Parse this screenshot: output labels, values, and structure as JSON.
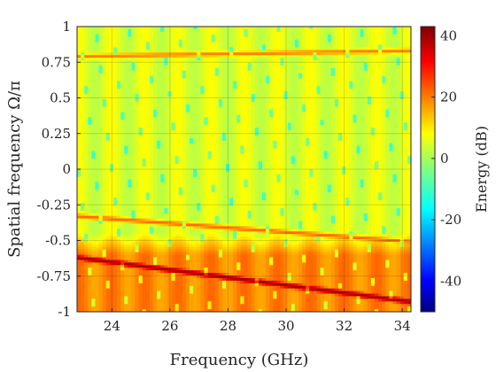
{
  "chart_data": {
    "type": "heatmap",
    "title": "",
    "xlabel": "Frequency (GHz)",
    "ylabel": "Spatial frequency Ω/π",
    "xlim": [
      22.8,
      34.3
    ],
    "ylim": [
      -1,
      1
    ],
    "x_ticks": [
      24,
      26,
      28,
      30,
      32,
      34
    ],
    "y_ticks": [
      1,
      0.75,
      0.5,
      0.25,
      0,
      -0.25,
      -0.5,
      -0.75,
      -1
    ],
    "y_tick_labels": [
      "1",
      "0.75",
      "0.5",
      "0.25",
      "0",
      "-0.25",
      "-0.5",
      "-0.75",
      "-1"
    ],
    "grid": true,
    "colormap": "jet",
    "colorbar": {
      "label": "Energy (dB)",
      "range": [
        -50,
        43
      ],
      "ticks": [
        40,
        20,
        0,
        -20,
        -40
      ]
    },
    "features": [
      {
        "kind": "main-beam-ridge",
        "y_at_xmin": -0.62,
        "y_at_xmax": -0.93,
        "energy_db": 40
      },
      {
        "kind": "secondary-ridge",
        "y_at_xmin": -0.33,
        "y_at_xmax": -0.51,
        "energy_db": 22
      },
      {
        "kind": "upper-ridge",
        "y_at_xmin": 0.79,
        "y_at_xmax": 0.83,
        "energy_db": 20
      },
      {
        "kind": "background-level",
        "energy_db": 5
      }
    ]
  }
}
